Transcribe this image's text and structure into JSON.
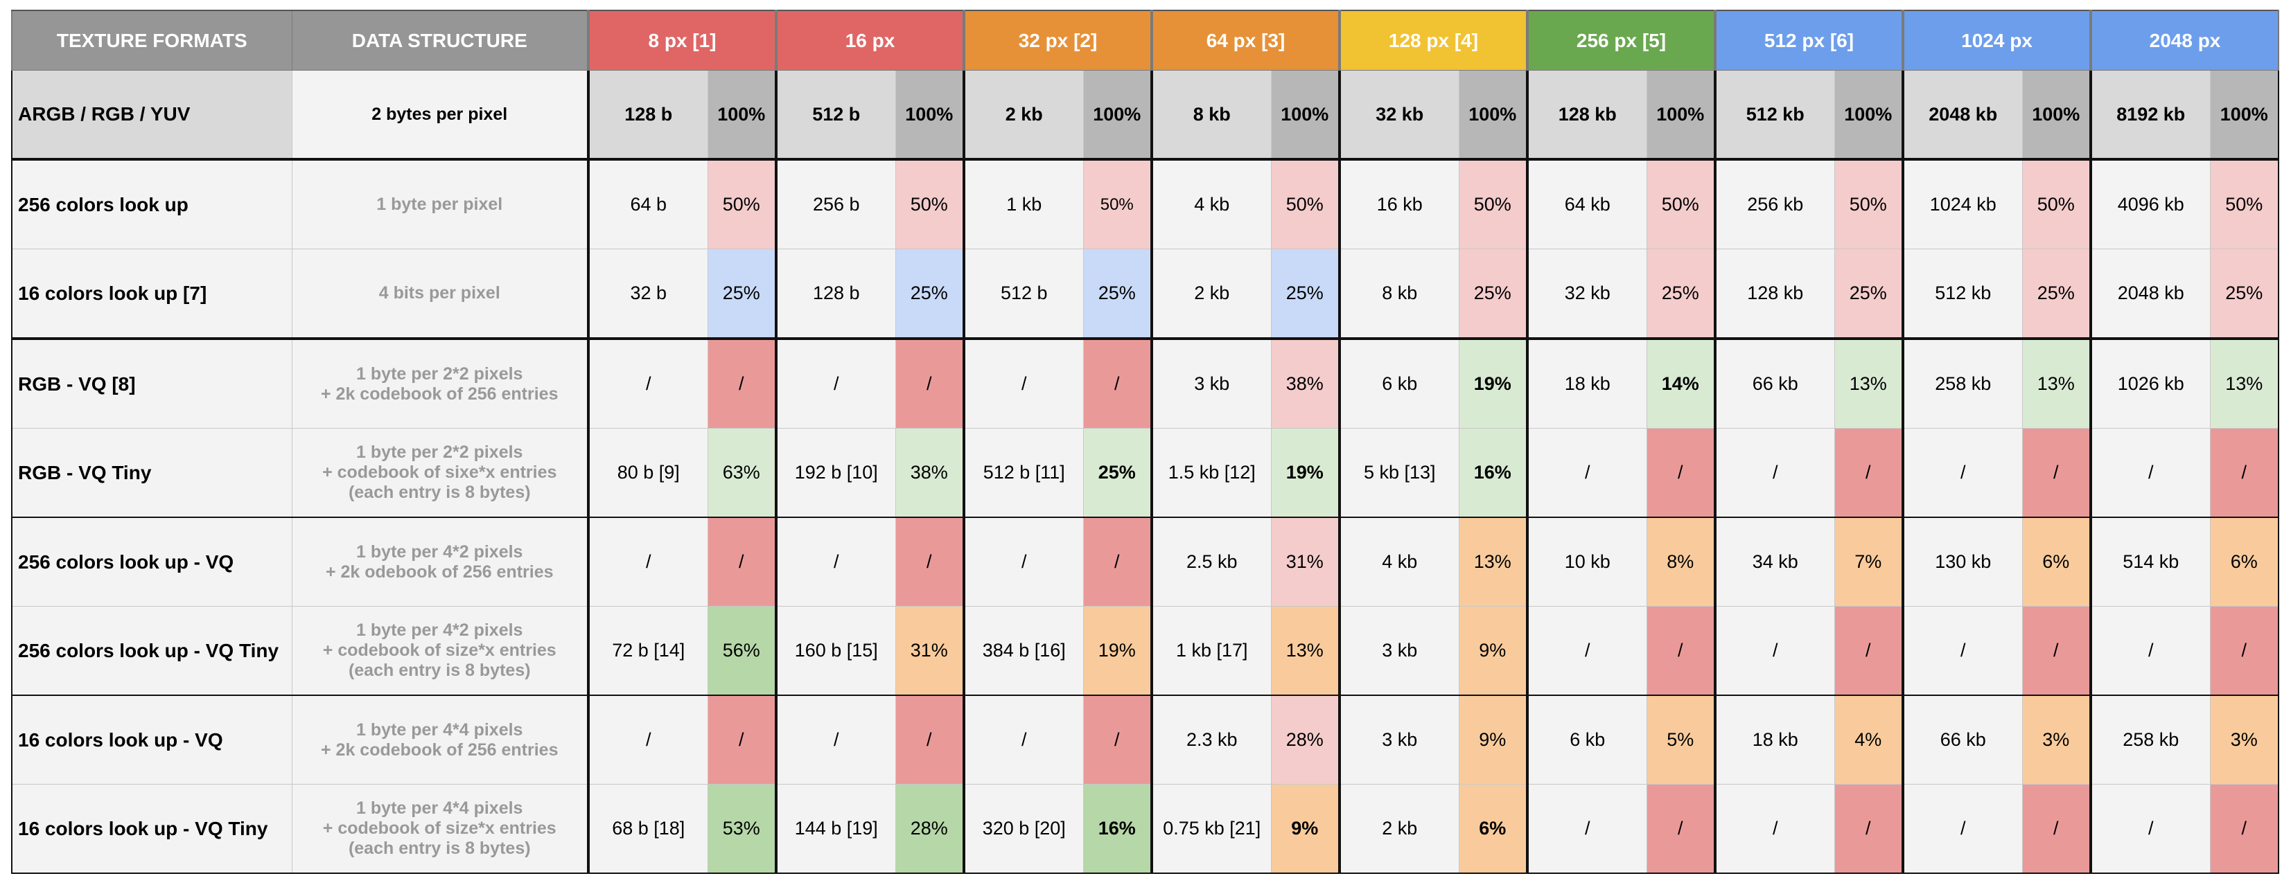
{
  "colors": {
    "header_gray": "#969696",
    "size_colors": [
      "#e06666",
      "#e06666",
      "#e69138",
      "#e69138",
      "#f1c232",
      "#6aa84f",
      "#6d9eeb",
      "#6d9eeb",
      "#6d9eeb"
    ],
    "pct_colors": {
      "full": "#b7b7b7",
      "pink": "#f4cccc",
      "blue": "#c9daf8",
      "red": "#ea9999",
      "lightgreen": "#d9ead3",
      "green": "#b6d7a8",
      "orange": "#f9cb9c"
    }
  },
  "headers": {
    "format": "TEXTURE FORMATS",
    "structure": "DATA STRUCTURE",
    "sizes": [
      "8 px [1]",
      "16 px",
      "32 px [2]",
      "64 px [3]",
      "128 px [4]",
      "256 px [5]",
      "512 px [6]",
      "1024 px",
      "2048 px"
    ]
  },
  "rows": [
    {
      "format": "ARGB / RGB / YUV",
      "structure": "2 bytes per pixel",
      "cells": [
        {
          "v": "128 b",
          "p": "100%",
          "c": "full"
        },
        {
          "v": "512 b",
          "p": "100%",
          "c": "full"
        },
        {
          "v": "2 kb",
          "p": "100%",
          "c": "full"
        },
        {
          "v": "8 kb",
          "p": "100%",
          "c": "full"
        },
        {
          "v": "32 kb",
          "p": "100%",
          "c": "full"
        },
        {
          "v": "128 kb",
          "p": "100%",
          "c": "full"
        },
        {
          "v": "512 kb",
          "p": "100%",
          "c": "full"
        },
        {
          "v": "2048 kb",
          "p": "100%",
          "c": "full"
        },
        {
          "v": "8192 kb",
          "p": "100%",
          "c": "full"
        }
      ]
    },
    {
      "format": "256 colors look up",
      "structure": "1 byte per pixel",
      "cells": [
        {
          "v": "64 b",
          "p": "50%",
          "c": "pink"
        },
        {
          "v": "256 b",
          "p": "50%",
          "c": "pink"
        },
        {
          "v": "1 kb",
          "p": "50%",
          "c": "pink",
          "small": true
        },
        {
          "v": "4 kb",
          "p": "50%",
          "c": "pink"
        },
        {
          "v": "16 kb",
          "p": "50%",
          "c": "pink"
        },
        {
          "v": "64 kb",
          "p": "50%",
          "c": "pink"
        },
        {
          "v": "256 kb",
          "p": "50%",
          "c": "pink"
        },
        {
          "v": "1024 kb",
          "p": "50%",
          "c": "pink"
        },
        {
          "v": "4096 kb",
          "p": "50%",
          "c": "pink"
        }
      ]
    },
    {
      "format": "16 colors look up  [7]",
      "structure": "4 bits per pixel",
      "cells": [
        {
          "v": "32 b",
          "p": "25%",
          "c": "blue"
        },
        {
          "v": "128 b",
          "p": "25%",
          "c": "blue"
        },
        {
          "v": "512 b",
          "p": "25%",
          "c": "blue"
        },
        {
          "v": "2 kb",
          "p": "25%",
          "c": "blue"
        },
        {
          "v": "8 kb",
          "p": "25%",
          "c": "pink"
        },
        {
          "v": "32 kb",
          "p": "25%",
          "c": "pink"
        },
        {
          "v": "128 kb",
          "p": "25%",
          "c": "pink"
        },
        {
          "v": "512 kb",
          "p": "25%",
          "c": "pink"
        },
        {
          "v": "2048 kb",
          "p": "25%",
          "c": "pink"
        }
      ]
    },
    {
      "format": "RGB - VQ  [8]",
      "structure": "1 byte per 2*2 pixels\n+ 2k codebook of 256 entries",
      "cells": [
        {
          "v": "/",
          "p": "/",
          "c": "red"
        },
        {
          "v": "/",
          "p": "/",
          "c": "red"
        },
        {
          "v": "/",
          "p": "/",
          "c": "red"
        },
        {
          "v": "3 kb",
          "p": "38%",
          "c": "pink"
        },
        {
          "v": "6 kb",
          "p": "19%",
          "c": "lightgreen",
          "bold": true
        },
        {
          "v": "18 kb",
          "p": "14%",
          "c": "lightgreen",
          "bold": true
        },
        {
          "v": "66 kb",
          "p": "13%",
          "c": "lightgreen"
        },
        {
          "v": "258 kb",
          "p": "13%",
          "c": "lightgreen"
        },
        {
          "v": "1026 kb",
          "p": "13%",
          "c": "lightgreen"
        }
      ]
    },
    {
      "format": "RGB - VQ Tiny",
      "structure": "1 byte per 2*2 pixels\n+ codebook of sixe*x entries\n(each entry is 8 bytes)",
      "cells": [
        {
          "v": "80 b [9]",
          "p": "63%",
          "c": "lightgreen"
        },
        {
          "v": "192 b [10]",
          "p": "38%",
          "c": "lightgreen"
        },
        {
          "v": "512 b [11]",
          "p": "25%",
          "c": "lightgreen",
          "bold": true
        },
        {
          "v": "1.5 kb [12]",
          "p": "19%",
          "c": "lightgreen",
          "bold": true
        },
        {
          "v": "5 kb [13]",
          "p": "16%",
          "c": "lightgreen",
          "bold": true
        },
        {
          "v": "/",
          "p": "/",
          "c": "red"
        },
        {
          "v": "/",
          "p": "/",
          "c": "red"
        },
        {
          "v": "/",
          "p": "/",
          "c": "red"
        },
        {
          "v": "/",
          "p": "/",
          "c": "red"
        }
      ]
    },
    {
      "format": "256 colors look up - VQ",
      "structure": "1 byte per 4*2 pixels\n+ 2k odebook of 256 entries",
      "cells": [
        {
          "v": "/",
          "p": "/",
          "c": "red"
        },
        {
          "v": "/",
          "p": "/",
          "c": "red"
        },
        {
          "v": "/",
          "p": "/",
          "c": "red"
        },
        {
          "v": "2.5 kb",
          "p": "31%",
          "c": "pink"
        },
        {
          "v": "4 kb",
          "p": "13%",
          "c": "orange"
        },
        {
          "v": "10 kb",
          "p": "8%",
          "c": "orange"
        },
        {
          "v": "34 kb",
          "p": "7%",
          "c": "orange"
        },
        {
          "v": "130 kb",
          "p": "6%",
          "c": "orange"
        },
        {
          "v": "514 kb",
          "p": "6%",
          "c": "orange"
        }
      ]
    },
    {
      "format": "256 colors look up - VQ Tiny",
      "structure": "1 byte per 4*2 pixels\n+ codebook of size*x entries\n(each entry is 8 bytes)",
      "cells": [
        {
          "v": "72 b [14]",
          "p": "56%",
          "c": "green"
        },
        {
          "v": "160 b [15]",
          "p": "31%",
          "c": "orange"
        },
        {
          "v": "384 b [16]",
          "p": "19%",
          "c": "orange"
        },
        {
          "v": "1 kb [17]",
          "p": "13%",
          "c": "orange"
        },
        {
          "v": "3 kb",
          "p": "9%",
          "c": "orange"
        },
        {
          "v": "/",
          "p": "/",
          "c": "red"
        },
        {
          "v": "/",
          "p": "/",
          "c": "red"
        },
        {
          "v": "/",
          "p": "/",
          "c": "red"
        },
        {
          "v": "/",
          "p": "/",
          "c": "red"
        }
      ]
    },
    {
      "format": "16 colors look up - VQ",
      "structure": "1 byte per 4*4 pixels\n+ 2k codebook of 256 entries",
      "cells": [
        {
          "v": "/",
          "p": "/",
          "c": "red"
        },
        {
          "v": "/",
          "p": "/",
          "c": "red"
        },
        {
          "v": "/",
          "p": "/",
          "c": "red"
        },
        {
          "v": "2.3 kb",
          "p": "28%",
          "c": "pink"
        },
        {
          "v": "3 kb",
          "p": "9%",
          "c": "orange"
        },
        {
          "v": "6 kb",
          "p": "5%",
          "c": "orange"
        },
        {
          "v": "18 kb",
          "p": "4%",
          "c": "orange"
        },
        {
          "v": "66 kb",
          "p": "3%",
          "c": "orange"
        },
        {
          "v": "258 kb",
          "p": "3%",
          "c": "orange"
        }
      ]
    },
    {
      "format": "16 colors look up - VQ Tiny",
      "structure": "1 byte per 4*4 pixels\n+ codebook of size*x entries\n(each entry is 8 bytes)",
      "cells": [
        {
          "v": "68 b [18]",
          "p": "53%",
          "c": "green"
        },
        {
          "v": "144 b [19]",
          "p": "28%",
          "c": "green"
        },
        {
          "v": "320 b [20]",
          "p": "16%",
          "c": "green",
          "bold": true
        },
        {
          "v": "0.75 kb [21]",
          "p": "9%",
          "c": "orange",
          "bold": true
        },
        {
          "v": "2 kb",
          "p": "6%",
          "c": "orange",
          "bold": true
        },
        {
          "v": "/",
          "p": "/",
          "c": "red"
        },
        {
          "v": "/",
          "p": "/",
          "c": "red"
        },
        {
          "v": "/",
          "p": "/",
          "c": "red"
        },
        {
          "v": "/",
          "p": "/",
          "c": "red"
        }
      ]
    }
  ]
}
